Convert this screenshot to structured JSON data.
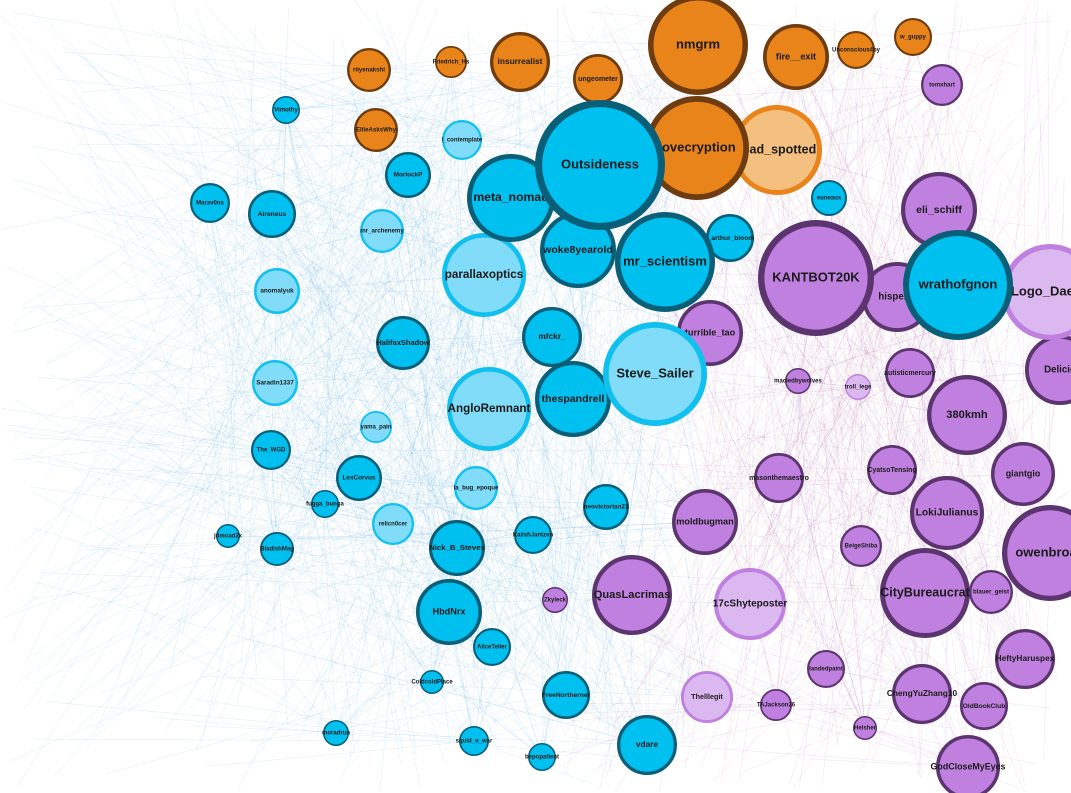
{
  "nodes": [
    "Outsideness",
    "nmgrm",
    "lovecryption",
    "toad_spotted",
    "KANTBOT20K",
    "wrathofgnon",
    "Logo_Daeda",
    "meta_nomad",
    "woke8yearold",
    "mr_scientism",
    "parallaxoptics",
    "Steve_Sailer",
    "AngloRemnant",
    "thespandrell",
    "mfckr_",
    "turrible_tao",
    "hisperic",
    "eli_schiff",
    "380kmh",
    "Delicio",
    "giantgio",
    "LokiJulianus",
    "owenbroad",
    "CityBureaucrat",
    "QuasLacrimas",
    "17cShyteposter",
    "moldbugman",
    "HbdNrx",
    "Nick_B_Steves",
    "vdare",
    "insurrealist",
    "fire__exit",
    "ungeometer",
    "HeftyHaruspex",
    "ChengYuZhang10",
    "GodCloseMyEyes",
    "OldBookClub",
    "Thelllegit",
    "FreeNortherner",
    "AliceTeller",
    "KalishJantzen",
    "neovictorian23",
    "LexCorvus",
    "relicn0cer",
    "la_bug_epoque",
    "The_WGD",
    "Saradin1337",
    "HalifaxShadow",
    "anomalyuk",
    "mr_archenemy",
    "Aireneus",
    "Marav0ns",
    "MorlockP",
    "l_contemplate",
    "ElileAsksWhy",
    "riiyenakshi",
    "Friedrich_Hs",
    "euneaux",
    "j_arthur_bloom",
    "tomxhart",
    "w_guppy",
    "Unconscious4by",
    "autisticmercury",
    "CyatsoTensing",
    "BeigeShiba",
    "masonthemaestro",
    "maciedbywolves",
    "BladishMag",
    "jdmoad2x",
    "Vimothy",
    "ColdcoldPlace",
    "moradrun",
    "squid_o_war",
    "bepopatient",
    "Zkyleck",
    "TAJackson26",
    "landedpaint",
    "blauer_geist",
    "Helsher",
    "troll_lege",
    "fugga_bunga",
    "yama_pain"
  ]
}
